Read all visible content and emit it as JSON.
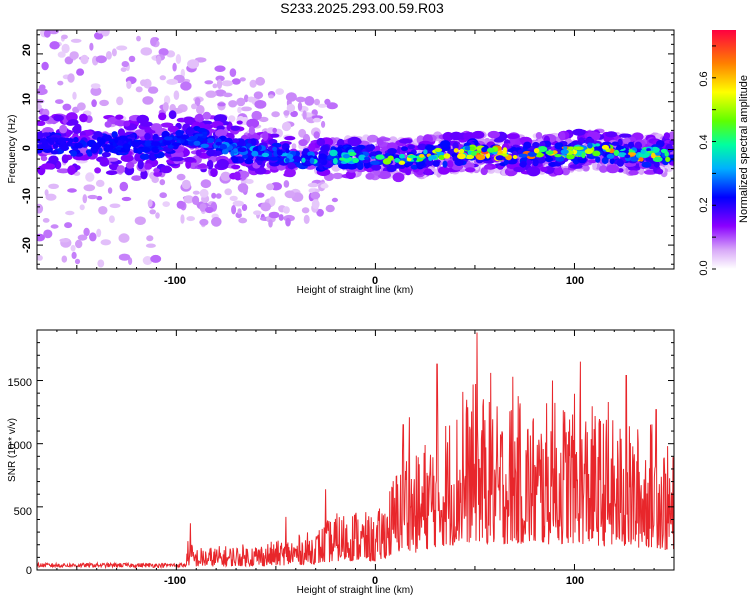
{
  "title": "S233.2025.293.00.59.R03",
  "chart_data": [
    {
      "type": "heatmap",
      "xlabel": "Height of straight line (km)",
      "ylabel": "Frequency (Hz)",
      "xlim": [
        -170,
        150
      ],
      "ylim": [
        -25,
        25
      ],
      "xticks": [
        "-100",
        "0",
        "100"
      ],
      "yticks": [
        "20",
        "10",
        "0",
        "-10",
        "-20"
      ],
      "colorbar": {
        "label": "Normalized spectral amplitude",
        "range": [
          0.0,
          0.75
        ],
        "ticks": [
          "0.0",
          "0.2",
          "0.4",
          "0.6"
        ]
      },
      "ridge_center_hz": [
        [
          -170,
          1.5
        ],
        [
          -150,
          1.0
        ],
        [
          -130,
          1.0
        ],
        [
          -110,
          0.5
        ],
        [
          -95,
          3.0
        ],
        [
          -85,
          1.5
        ],
        [
          -70,
          0
        ],
        [
          -50,
          -1
        ],
        [
          -30,
          -2
        ],
        [
          -10,
          -1.5
        ],
        [
          10,
          -2
        ],
        [
          30,
          -1
        ],
        [
          50,
          -0.5
        ],
        [
          70,
          -1
        ],
        [
          90,
          -1
        ],
        [
          110,
          0
        ],
        [
          130,
          -1
        ],
        [
          150,
          -1
        ]
      ],
      "amplitude_trend": [
        [
          -170,
          0.15
        ],
        [
          -100,
          0.2
        ],
        [
          -50,
          0.3
        ],
        [
          0,
          0.4
        ],
        [
          20,
          0.55
        ],
        [
          60,
          0.65
        ],
        [
          100,
          0.6
        ],
        [
          150,
          0.6
        ]
      ]
    },
    {
      "type": "line",
      "xlabel": "Height of straight line (km)",
      "ylabel": "SNR (10 * v/v)",
      "xlim": [
        -170,
        150
      ],
      "ylim": [
        0,
        1900
      ],
      "xticks": [
        "-100",
        "0",
        "100"
      ],
      "yticks": [
        "0",
        "500",
        "1000",
        "1500"
      ],
      "color": "#e8262b",
      "envelope": [
        [
          -170,
          40
        ],
        [
          -110,
          40
        ],
        [
          -100,
          60
        ],
        [
          -95,
          250
        ],
        [
          -90,
          180
        ],
        [
          -70,
          200
        ],
        [
          -50,
          230
        ],
        [
          -30,
          320
        ],
        [
          -20,
          450
        ],
        [
          -10,
          500
        ],
        [
          0,
          420
        ],
        [
          5,
          600
        ],
        [
          10,
          800
        ],
        [
          15,
          1100
        ],
        [
          20,
          900
        ],
        [
          30,
          1200
        ],
        [
          40,
          1300
        ],
        [
          50,
          1500
        ],
        [
          60,
          1300
        ],
        [
          70,
          1400
        ],
        [
          80,
          1300
        ],
        [
          90,
          1350
        ],
        [
          100,
          1400
        ],
        [
          110,
          1300
        ],
        [
          120,
          1200
        ],
        [
          130,
          1150
        ],
        [
          140,
          1200
        ],
        [
          150,
          900
        ]
      ],
      "peaks": [
        [
          -93,
          370
        ],
        [
          -45,
          420
        ],
        [
          -25,
          640
        ],
        [
          14,
          1150
        ],
        [
          17,
          1210
        ],
        [
          31,
          1630
        ],
        [
          44,
          1410
        ],
        [
          51,
          1880
        ],
        [
          58,
          1560
        ],
        [
          69,
          1530
        ],
        [
          89,
          1500
        ],
        [
          103,
          1650
        ],
        [
          117,
          1330
        ],
        [
          126,
          1540
        ],
        [
          141,
          1270
        ]
      ]
    }
  ]
}
